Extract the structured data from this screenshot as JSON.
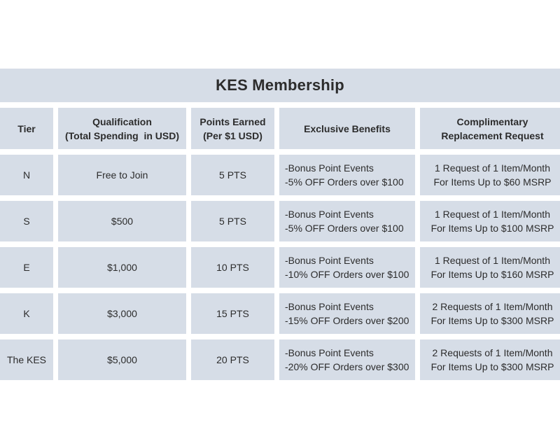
{
  "title": "KES Membership",
  "headers": {
    "tier": "Tier",
    "qualification": [
      "Qualification",
      "(Total Spending  in USD)"
    ],
    "points": [
      "Points Earned",
      "(Per $1 USD)"
    ],
    "benefits": "Exclusive Benefits",
    "replacement": [
      "Complimentary",
      "Replacement Request"
    ]
  },
  "rows": [
    {
      "tier": "N",
      "qualification": "Free to Join",
      "points": "5 PTS",
      "benefits": [
        "-Bonus Point Events",
        "-5% OFF Orders over $100"
      ],
      "replacement": [
        "1 Request of 1 Item/Month",
        "For Items Up to $60 MSRP"
      ]
    },
    {
      "tier": "S",
      "qualification": "$500",
      "points": "5 PTS",
      "benefits": [
        "-Bonus Point Events",
        "-5% OFF Orders over $100"
      ],
      "replacement": [
        "1 Request of 1 Item/Month",
        "For Items Up to $100 MSRP"
      ]
    },
    {
      "tier": "E",
      "qualification": "$1,000",
      "points": "10 PTS",
      "benefits": [
        "-Bonus Point Events",
        "-10% OFF Orders over $100"
      ],
      "replacement": [
        "1 Request of 1 Item/Month",
        "For Items Up to $160 MSRP"
      ]
    },
    {
      "tier": "K",
      "qualification": "$3,000",
      "points": "15 PTS",
      "benefits": [
        "-Bonus Point Events",
        "-15% OFF Orders over $200"
      ],
      "replacement": [
        "2 Requests of 1 Item/Month",
        "For Items Up to $300 MSRP"
      ]
    },
    {
      "tier": "The KES",
      "qualification": "$5,000",
      "points": "20 PTS",
      "benefits": [
        "-Bonus Point Events",
        "-20% OFF Orders over $300"
      ],
      "replacement": [
        "2 Requests of 1 Item/Month",
        "For Items Up to $300 MSRP"
      ]
    }
  ],
  "colors": {
    "cell_background": "#d6dde7",
    "text": "#2c2c2c",
    "page_background": "#ffffff"
  }
}
